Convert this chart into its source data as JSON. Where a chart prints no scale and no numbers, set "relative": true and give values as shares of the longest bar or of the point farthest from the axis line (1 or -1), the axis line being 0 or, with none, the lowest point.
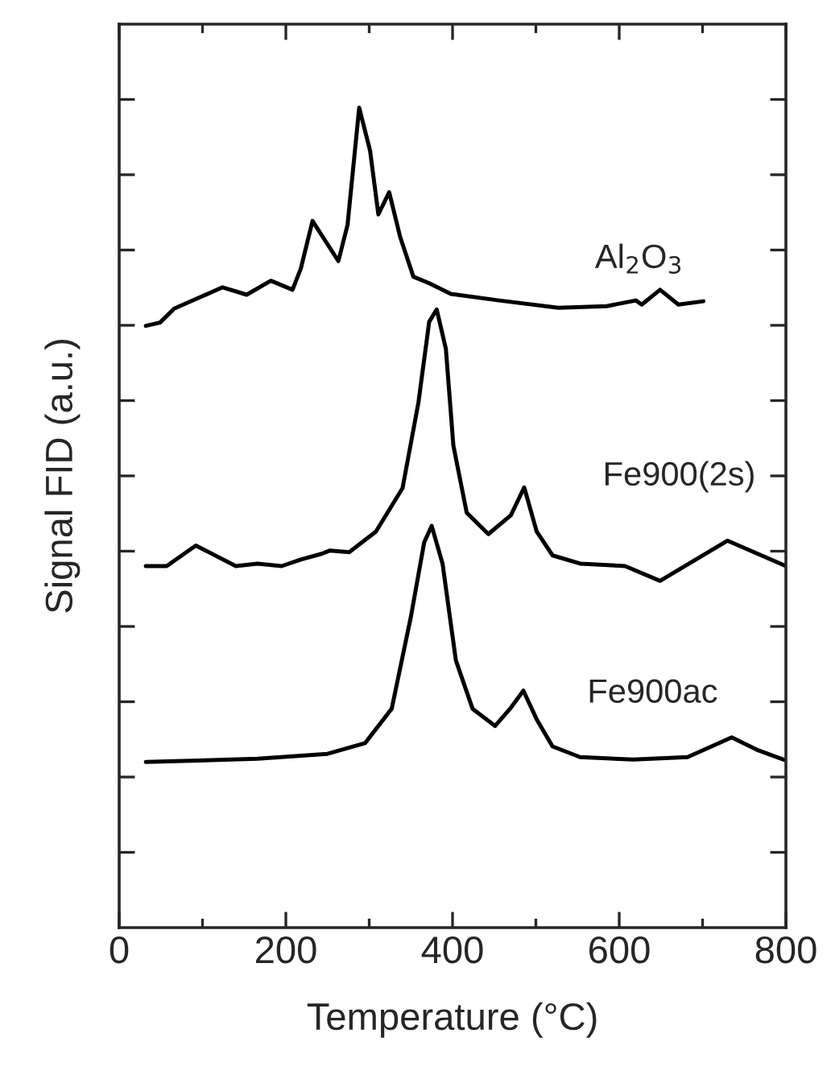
{
  "chart_data": {
    "type": "line",
    "relative": true,
    "xlabel": "Temperature (°C)",
    "ylabel": "Signal FID (a.u.)",
    "xlim": [
      0,
      800
    ],
    "xticks": [
      0,
      200,
      400,
      600,
      800
    ],
    "grid": false,
    "legend": false,
    "marker": "none",
    "line_style": "solid",
    "series": [
      {
        "name": "Al$_{2}$O$_{3}$",
        "color": "#000000",
        "x": [
          32,
          49,
          66,
          95,
          124,
          153,
          182,
          208,
          218,
          232,
          263,
          274,
          288,
          301,
          311,
          324,
          337,
          353,
          372,
          398,
          456,
          527,
          585,
          620,
          627,
          649,
          671,
          701
        ],
        "values": [
          0.734,
          0.738,
          0.755,
          0.768,
          0.781,
          0.772,
          0.789,
          0.778,
          0.804,
          0.862,
          0.813,
          0.857,
          1.0,
          0.948,
          0.87,
          0.897,
          0.843,
          0.794,
          0.786,
          0.773,
          0.765,
          0.756,
          0.758,
          0.765,
          0.76,
          0.778,
          0.76,
          0.764
        ]
      },
      {
        "name": "Fe900(2s)",
        "color": "#000000",
        "x": [
          32,
          57,
          92,
          140,
          166,
          195,
          218,
          243,
          253,
          276,
          308,
          340,
          359,
          372,
          381,
          392,
          401,
          417,
          443,
          470,
          486,
          501,
          520,
          553,
          607,
          649,
          730,
          800
        ],
        "values": [
          0.441,
          0.441,
          0.466,
          0.441,
          0.444,
          0.441,
          0.449,
          0.456,
          0.46,
          0.458,
          0.483,
          0.536,
          0.64,
          0.739,
          0.754,
          0.706,
          0.588,
          0.506,
          0.48,
          0.503,
          0.537,
          0.483,
          0.454,
          0.444,
          0.441,
          0.423,
          0.472,
          0.441
        ]
      },
      {
        "name": "Fe900ac",
        "color": "#000000",
        "x": [
          32,
          166,
          250,
          295,
          327,
          350,
          366,
          375,
          388,
          404,
          424,
          451,
          469,
          485,
          501,
          520,
          553,
          617,
          682,
          735,
          765,
          800
        ],
        "values": [
          0.202,
          0.206,
          0.212,
          0.225,
          0.267,
          0.379,
          0.47,
          0.49,
          0.444,
          0.326,
          0.267,
          0.246,
          0.267,
          0.289,
          0.254,
          0.221,
          0.208,
          0.205,
          0.208,
          0.232,
          0.217,
          0.204
        ]
      }
    ]
  }
}
